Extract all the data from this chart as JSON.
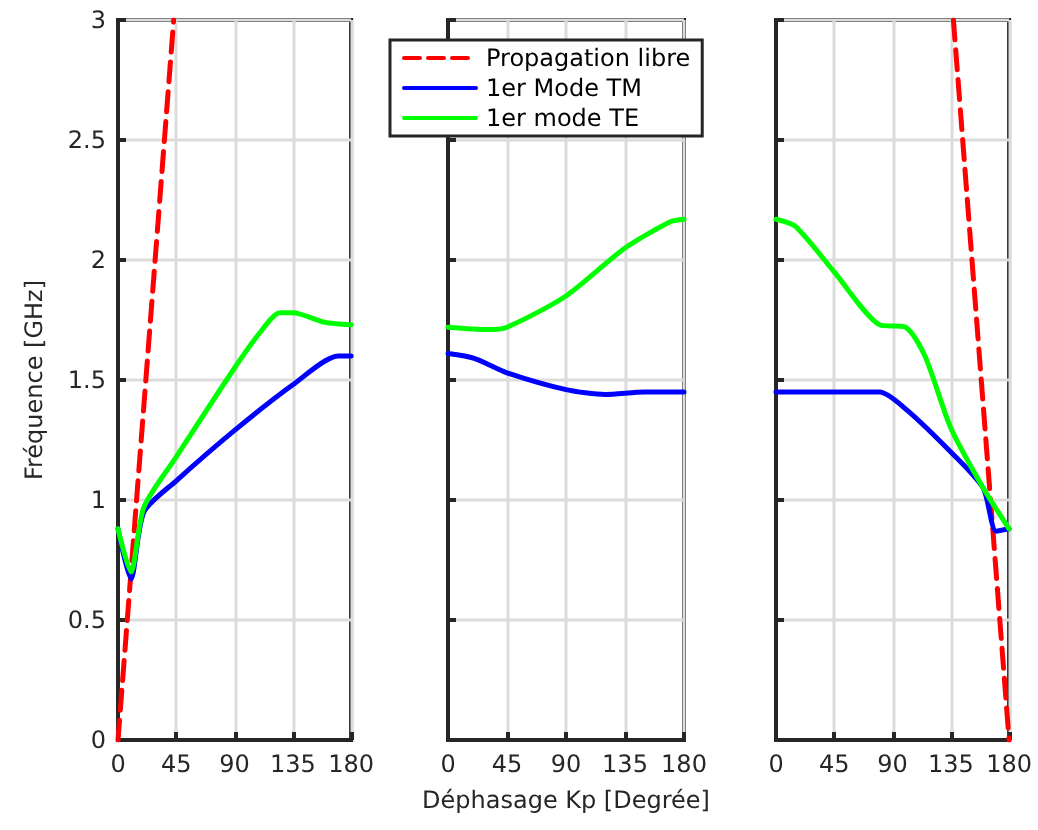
{
  "chart_data": [
    {
      "type": "line",
      "ylabel": "Fréquence [GHz]",
      "xlim": [
        0,
        180
      ],
      "xticks": [
        0,
        45,
        90,
        135,
        180
      ],
      "ylim": [
        0,
        3
      ],
      "yticks": [
        0,
        0.5,
        1,
        1.5,
        2,
        2.5,
        3
      ],
      "grid": true,
      "marker": "none",
      "series": [
        {
          "color": "#ff0000",
          "line_style": "dashed",
          "x": [
            0,
            43
          ],
          "values": [
            0,
            3
          ]
        },
        {
          "color": "#0000ff",
          "x": [
            0,
            10,
            20,
            45,
            90,
            135,
            170,
            180
          ],
          "values": [
            0.88,
            0.67,
            0.95,
            1.08,
            1.29,
            1.48,
            1.6,
            1.6
          ]
        },
        {
          "color": "#00ff00",
          "x": [
            0,
            10,
            20,
            45,
            90,
            110,
            125,
            135,
            160,
            180
          ],
          "values": [
            0.88,
            0.7,
            0.97,
            1.18,
            1.55,
            1.7,
            1.78,
            1.78,
            1.74,
            1.73
          ]
        }
      ]
    },
    {
      "type": "line",
      "xlabel": "Déphasage Kp [Degrée]",
      "xlim": [
        0,
        180
      ],
      "xticks": [
        0,
        45,
        90,
        135,
        180
      ],
      "ylim": [
        0,
        3
      ],
      "yticks": [
        0,
        0.5,
        1,
        1.5,
        2,
        2.5,
        3
      ],
      "grid": true,
      "marker": "none",
      "tick_labels": "x",
      "legend": "top",
      "series": [
        {
          "name": "Propagation libre",
          "color": "#ff0000",
          "line_style": "dashed"
        },
        {
          "name": "1er Mode TM",
          "color": "#0000ff",
          "x": [
            0,
            20,
            45,
            90,
            120,
            150,
            180
          ],
          "values": [
            1.61,
            1.59,
            1.53,
            1.46,
            1.44,
            1.45,
            1.45
          ]
        },
        {
          "name": "1er mode TE",
          "color": "#00ff00",
          "x": [
            0,
            30,
            45,
            90,
            135,
            170,
            180
          ],
          "values": [
            1.72,
            1.71,
            1.72,
            1.85,
            2.05,
            2.16,
            2.17
          ]
        }
      ]
    },
    {
      "type": "line",
      "xlim": [
        0,
        180
      ],
      "xticks": [
        0,
        45,
        90,
        135,
        180
      ],
      "ylim": [
        0,
        3
      ],
      "yticks": [
        0,
        0.5,
        1,
        1.5,
        2,
        2.5,
        3
      ],
      "grid": true,
      "marker": "none",
      "tick_labels": "x",
      "series": [
        {
          "color": "#ff0000",
          "line_style": "dashed",
          "x": [
            137,
            180
          ],
          "values": [
            3,
            0
          ]
        },
        {
          "color": "#0000ff",
          "x": [
            0,
            45,
            80,
            100,
            135,
            160,
            170,
            180
          ],
          "values": [
            1.45,
            1.45,
            1.45,
            1.38,
            1.2,
            1.05,
            0.87,
            0.88
          ]
        },
        {
          "color": "#00ff00",
          "x": [
            0,
            15,
            45,
            80,
            100,
            115,
            135,
            160,
            180
          ],
          "values": [
            2.17,
            2.14,
            1.95,
            1.73,
            1.72,
            1.6,
            1.3,
            1.05,
            0.88
          ]
        }
      ]
    }
  ]
}
